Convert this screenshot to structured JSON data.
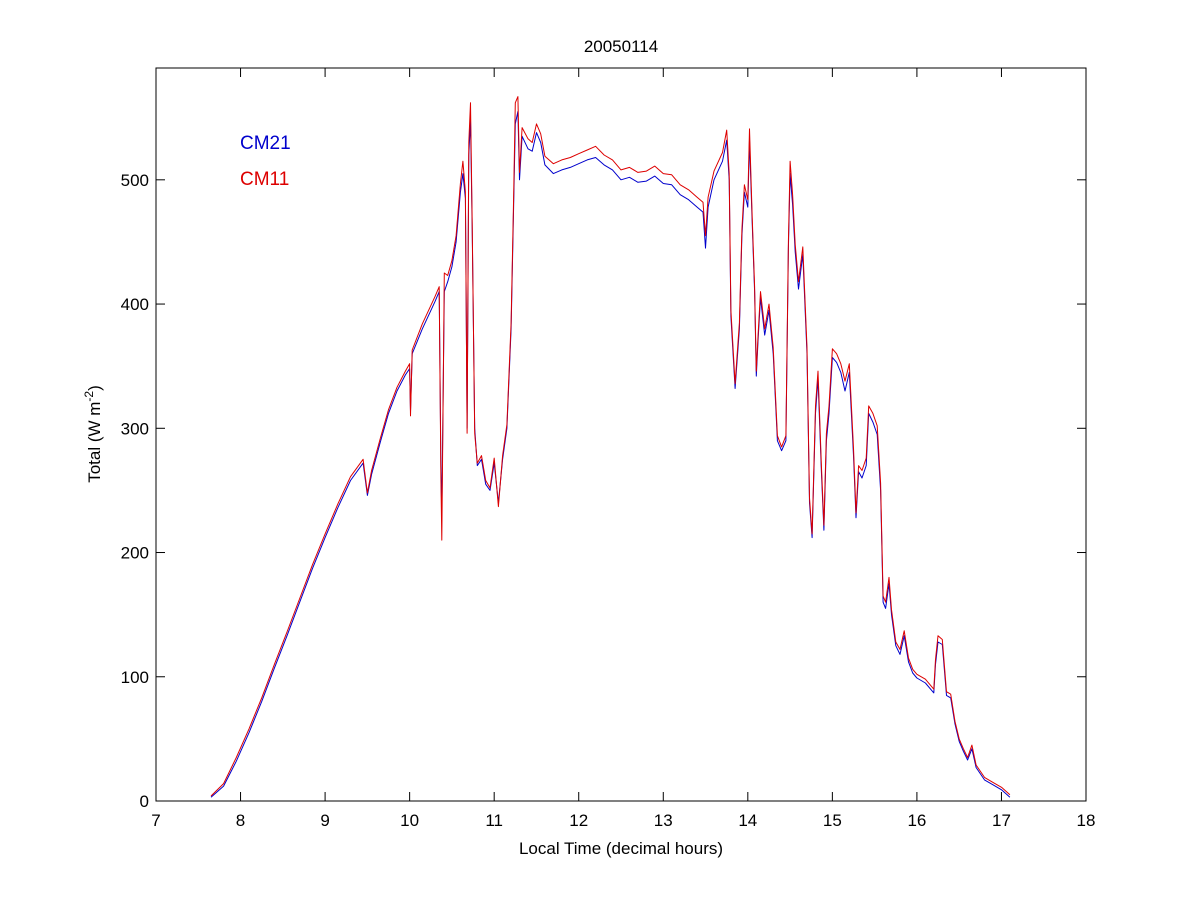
{
  "chart_data": {
    "type": "line",
    "title": "20050114",
    "xlabel": "Local Time (decimal hours)",
    "ylabel_main": "Total (W m",
    "ylabel_sup": "-2",
    "ylabel_close": ")",
    "xlim": [
      7,
      18
    ],
    "ylim": [
      0,
      590
    ],
    "xticks": [
      7,
      8,
      9,
      10,
      11,
      12,
      13,
      14,
      15,
      16,
      17,
      18
    ],
    "yticks": [
      0,
      100,
      200,
      300,
      400,
      500
    ],
    "grid": false,
    "legend_position": "top-left",
    "series": [
      {
        "name": "CM21",
        "color": "#0000cc",
        "points": [
          [
            7.65,
            3
          ],
          [
            7.8,
            12
          ],
          [
            7.95,
            32
          ],
          [
            8.1,
            55
          ],
          [
            8.25,
            80
          ],
          [
            8.4,
            107
          ],
          [
            8.55,
            133
          ],
          [
            8.7,
            160
          ],
          [
            8.85,
            187
          ],
          [
            9.0,
            212
          ],
          [
            9.15,
            236
          ],
          [
            9.3,
            258
          ],
          [
            9.45,
            272
          ],
          [
            9.5,
            246
          ],
          [
            9.55,
            263
          ],
          [
            9.65,
            288
          ],
          [
            9.75,
            312
          ],
          [
            9.85,
            330
          ],
          [
            9.95,
            343
          ],
          [
            10.0,
            348
          ],
          [
            10.01,
            314
          ],
          [
            10.03,
            360
          ],
          [
            10.15,
            380
          ],
          [
            10.3,
            402
          ],
          [
            10.35,
            410
          ],
          [
            10.37,
            270
          ],
          [
            10.38,
            230
          ],
          [
            10.41,
            410
          ],
          [
            10.45,
            418
          ],
          [
            10.5,
            430
          ],
          [
            10.55,
            450
          ],
          [
            10.6,
            490
          ],
          [
            10.63,
            505
          ],
          [
            10.66,
            485
          ],
          [
            10.68,
            300
          ],
          [
            10.7,
            520
          ],
          [
            10.72,
            548
          ],
          [
            10.74,
            460
          ],
          [
            10.77,
            300
          ],
          [
            10.8,
            270
          ],
          [
            10.85,
            275
          ],
          [
            10.9,
            255
          ],
          [
            10.95,
            250
          ],
          [
            11.0,
            272
          ],
          [
            11.05,
            240
          ],
          [
            11.1,
            275
          ],
          [
            11.15,
            300
          ],
          [
            11.2,
            380
          ],
          [
            11.23,
            478
          ],
          [
            11.25,
            545
          ],
          [
            11.28,
            555
          ],
          [
            11.3,
            500
          ],
          [
            11.33,
            535
          ],
          [
            11.4,
            525
          ],
          [
            11.45,
            523
          ],
          [
            11.5,
            538
          ],
          [
            11.55,
            530
          ],
          [
            11.6,
            512
          ],
          [
            11.7,
            505
          ],
          [
            11.8,
            508
          ],
          [
            11.9,
            510
          ],
          [
            12.0,
            513
          ],
          [
            12.1,
            516
          ],
          [
            12.2,
            518
          ],
          [
            12.3,
            512
          ],
          [
            12.4,
            508
          ],
          [
            12.5,
            500
          ],
          [
            12.6,
            502
          ],
          [
            12.7,
            498
          ],
          [
            12.8,
            499
          ],
          [
            12.9,
            503
          ],
          [
            13.0,
            497
          ],
          [
            13.1,
            496
          ],
          [
            13.2,
            488
          ],
          [
            13.3,
            484
          ],
          [
            13.4,
            478
          ],
          [
            13.47,
            474
          ],
          [
            13.5,
            445
          ],
          [
            13.53,
            478
          ],
          [
            13.6,
            500
          ],
          [
            13.7,
            515
          ],
          [
            13.75,
            532
          ],
          [
            13.78,
            500
          ],
          [
            13.8,
            390
          ],
          [
            13.85,
            332
          ],
          [
            13.9,
            380
          ],
          [
            13.93,
            455
          ],
          [
            13.96,
            490
          ],
          [
            14.0,
            478
          ],
          [
            14.02,
            532
          ],
          [
            14.05,
            470
          ],
          [
            14.08,
            410
          ],
          [
            14.1,
            342
          ],
          [
            14.12,
            370
          ],
          [
            14.15,
            405
          ],
          [
            14.2,
            375
          ],
          [
            14.25,
            395
          ],
          [
            14.3,
            360
          ],
          [
            14.35,
            290
          ],
          [
            14.4,
            282
          ],
          [
            14.45,
            290
          ],
          [
            14.48,
            445
          ],
          [
            14.5,
            505
          ],
          [
            14.53,
            480
          ],
          [
            14.56,
            442
          ],
          [
            14.6,
            412
          ],
          [
            14.65,
            440
          ],
          [
            14.7,
            360
          ],
          [
            14.73,
            240
          ],
          [
            14.76,
            212
          ],
          [
            14.8,
            312
          ],
          [
            14.83,
            340
          ],
          [
            14.87,
            265
          ],
          [
            14.9,
            218
          ],
          [
            14.93,
            290
          ],
          [
            14.96,
            312
          ],
          [
            15.0,
            357
          ],
          [
            15.05,
            353
          ],
          [
            15.1,
            345
          ],
          [
            15.15,
            330
          ],
          [
            15.2,
            345
          ],
          [
            15.25,
            278
          ],
          [
            15.28,
            228
          ],
          [
            15.31,
            265
          ],
          [
            15.35,
            260
          ],
          [
            15.4,
            270
          ],
          [
            15.43,
            312
          ],
          [
            15.48,
            305
          ],
          [
            15.53,
            295
          ],
          [
            15.57,
            250
          ],
          [
            15.6,
            160
          ],
          [
            15.63,
            155
          ],
          [
            15.67,
            175
          ],
          [
            15.7,
            150
          ],
          [
            15.75,
            125
          ],
          [
            15.8,
            118
          ],
          [
            15.85,
            133
          ],
          [
            15.9,
            112
          ],
          [
            15.95,
            103
          ],
          [
            16.0,
            99
          ],
          [
            16.1,
            95
          ],
          [
            16.2,
            87
          ],
          [
            16.22,
            110
          ],
          [
            16.25,
            128
          ],
          [
            16.3,
            126
          ],
          [
            16.35,
            85
          ],
          [
            16.4,
            83
          ],
          [
            16.45,
            62
          ],
          [
            16.5,
            48
          ],
          [
            16.55,
            40
          ],
          [
            16.6,
            33
          ],
          [
            16.65,
            42
          ],
          [
            16.7,
            27
          ],
          [
            16.8,
            17
          ],
          [
            16.9,
            13
          ],
          [
            17.0,
            9
          ],
          [
            17.1,
            3
          ]
        ]
      },
      {
        "name": "CM11",
        "color": "#dd0000",
        "points": [
          [
            7.65,
            4
          ],
          [
            7.8,
            14
          ],
          [
            7.95,
            35
          ],
          [
            8.1,
            58
          ],
          [
            8.25,
            83
          ],
          [
            8.4,
            110
          ],
          [
            8.55,
            136
          ],
          [
            8.7,
            163
          ],
          [
            8.85,
            190
          ],
          [
            9.0,
            215
          ],
          [
            9.15,
            239
          ],
          [
            9.3,
            261
          ],
          [
            9.45,
            275
          ],
          [
            9.5,
            248
          ],
          [
            9.55,
            266
          ],
          [
            9.65,
            291
          ],
          [
            9.75,
            315
          ],
          [
            9.85,
            333
          ],
          [
            9.95,
            346
          ],
          [
            10.0,
            352
          ],
          [
            10.01,
            310
          ],
          [
            10.03,
            363
          ],
          [
            10.15,
            384
          ],
          [
            10.3,
            406
          ],
          [
            10.35,
            414
          ],
          [
            10.37,
            260
          ],
          [
            10.38,
            210
          ],
          [
            10.41,
            425
          ],
          [
            10.45,
            423
          ],
          [
            10.5,
            435
          ],
          [
            10.55,
            455
          ],
          [
            10.6,
            497
          ],
          [
            10.63,
            515
          ],
          [
            10.66,
            490
          ],
          [
            10.68,
            296
          ],
          [
            10.7,
            530
          ],
          [
            10.72,
            562
          ],
          [
            10.74,
            465
          ],
          [
            10.77,
            296
          ],
          [
            10.8,
            272
          ],
          [
            10.85,
            278
          ],
          [
            10.9,
            258
          ],
          [
            10.95,
            252
          ],
          [
            11.0,
            276
          ],
          [
            11.05,
            237
          ],
          [
            11.1,
            278
          ],
          [
            11.15,
            303
          ],
          [
            11.2,
            385
          ],
          [
            11.23,
            485
          ],
          [
            11.25,
            562
          ],
          [
            11.28,
            567
          ],
          [
            11.3,
            506
          ],
          [
            11.33,
            542
          ],
          [
            11.4,
            533
          ],
          [
            11.45,
            530
          ],
          [
            11.5,
            545
          ],
          [
            11.55,
            537
          ],
          [
            11.6,
            519
          ],
          [
            11.7,
            513
          ],
          [
            11.8,
            516
          ],
          [
            11.9,
            518
          ],
          [
            12.0,
            521
          ],
          [
            12.1,
            524
          ],
          [
            12.2,
            527
          ],
          [
            12.3,
            520
          ],
          [
            12.4,
            516
          ],
          [
            12.5,
            508
          ],
          [
            12.6,
            510
          ],
          [
            12.7,
            506
          ],
          [
            12.8,
            507
          ],
          [
            12.9,
            511
          ],
          [
            13.0,
            505
          ],
          [
            13.1,
            504
          ],
          [
            13.2,
            496
          ],
          [
            13.3,
            492
          ],
          [
            13.4,
            486
          ],
          [
            13.47,
            482
          ],
          [
            13.5,
            455
          ],
          [
            13.53,
            486
          ],
          [
            13.6,
            507
          ],
          [
            13.7,
            522
          ],
          [
            13.75,
            540
          ],
          [
            13.78,
            505
          ],
          [
            13.8,
            395
          ],
          [
            13.85,
            336
          ],
          [
            13.9,
            385
          ],
          [
            13.93,
            460
          ],
          [
            13.96,
            496
          ],
          [
            14.0,
            484
          ],
          [
            14.02,
            541
          ],
          [
            14.05,
            475
          ],
          [
            14.08,
            414
          ],
          [
            14.1,
            346
          ],
          [
            14.12,
            374
          ],
          [
            14.15,
            410
          ],
          [
            14.2,
            380
          ],
          [
            14.25,
            400
          ],
          [
            14.3,
            365
          ],
          [
            14.35,
            294
          ],
          [
            14.4,
            285
          ],
          [
            14.45,
            294
          ],
          [
            14.48,
            450
          ],
          [
            14.5,
            515
          ],
          [
            14.53,
            488
          ],
          [
            14.56,
            448
          ],
          [
            14.6,
            418
          ],
          [
            14.65,
            446
          ],
          [
            14.7,
            365
          ],
          [
            14.73,
            244
          ],
          [
            14.76,
            215
          ],
          [
            14.8,
            318
          ],
          [
            14.83,
            346
          ],
          [
            14.87,
            270
          ],
          [
            14.9,
            222
          ],
          [
            14.93,
            296
          ],
          [
            14.96,
            318
          ],
          [
            15.0,
            364
          ],
          [
            15.05,
            360
          ],
          [
            15.1,
            352
          ],
          [
            15.15,
            338
          ],
          [
            15.2,
            352
          ],
          [
            15.25,
            284
          ],
          [
            15.28,
            232
          ],
          [
            15.31,
            270
          ],
          [
            15.35,
            266
          ],
          [
            15.4,
            276
          ],
          [
            15.43,
            318
          ],
          [
            15.48,
            312
          ],
          [
            15.53,
            302
          ],
          [
            15.57,
            256
          ],
          [
            15.6,
            165
          ],
          [
            15.63,
            160
          ],
          [
            15.67,
            180
          ],
          [
            15.7,
            154
          ],
          [
            15.75,
            128
          ],
          [
            15.8,
            122
          ],
          [
            15.85,
            137
          ],
          [
            15.9,
            115
          ],
          [
            15.95,
            106
          ],
          [
            16.0,
            102
          ],
          [
            16.1,
            98
          ],
          [
            16.2,
            90
          ],
          [
            16.22,
            114
          ],
          [
            16.25,
            133
          ],
          [
            16.3,
            130
          ],
          [
            16.35,
            88
          ],
          [
            16.4,
            86
          ],
          [
            16.45,
            64
          ],
          [
            16.5,
            50
          ],
          [
            16.55,
            42
          ],
          [
            16.6,
            35
          ],
          [
            16.65,
            45
          ],
          [
            16.7,
            29
          ],
          [
            16.8,
            19
          ],
          [
            16.9,
            15
          ],
          [
            17.0,
            11
          ],
          [
            17.1,
            5
          ]
        ]
      }
    ]
  }
}
